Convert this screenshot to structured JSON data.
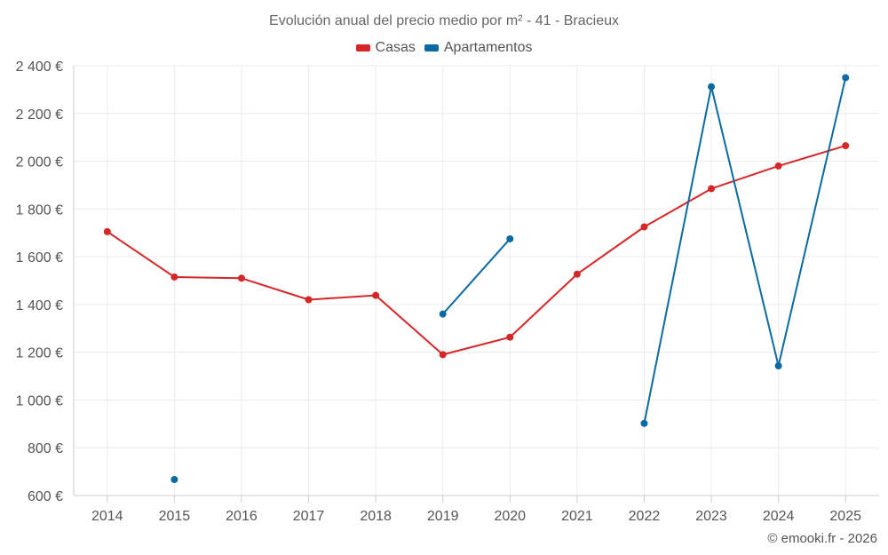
{
  "chart_data": {
    "type": "line",
    "title": "Evolución anual del precio medio por m² - 41 - Bracieux",
    "categories": [
      "2014",
      "2015",
      "2016",
      "2017",
      "2018",
      "2019",
      "2020",
      "2021",
      "2022",
      "2023",
      "2024",
      "2025"
    ],
    "series": [
      {
        "name": "Casas",
        "color": "#d62728",
        "values": [
          1705,
          1515,
          1510,
          1420,
          1438,
          1190,
          1263,
          1527,
          1725,
          1885,
          1980,
          2065
        ]
      },
      {
        "name": "Apartamentos",
        "color": "#0a6aa1",
        "values": [
          null,
          667,
          null,
          null,
          null,
          1360,
          1675,
          null,
          902,
          2312,
          1143,
          2350
        ]
      }
    ],
    "ylim": [
      600,
      2400
    ],
    "yticks": [
      600,
      800,
      1000,
      1200,
      1400,
      1600,
      1800,
      2000,
      2200,
      2400
    ],
    "ytick_labels": [
      "600 €",
      "800 €",
      "1 000 €",
      "1 200 €",
      "1 400 €",
      "1 600 €",
      "1 800 €",
      "2 000 €",
      "2 200 €",
      "2 400 €"
    ],
    "xlabel": "",
    "ylabel": "",
    "grid": true,
    "legend_position": "top-center"
  },
  "credit": "© emooki.fr - 2026"
}
